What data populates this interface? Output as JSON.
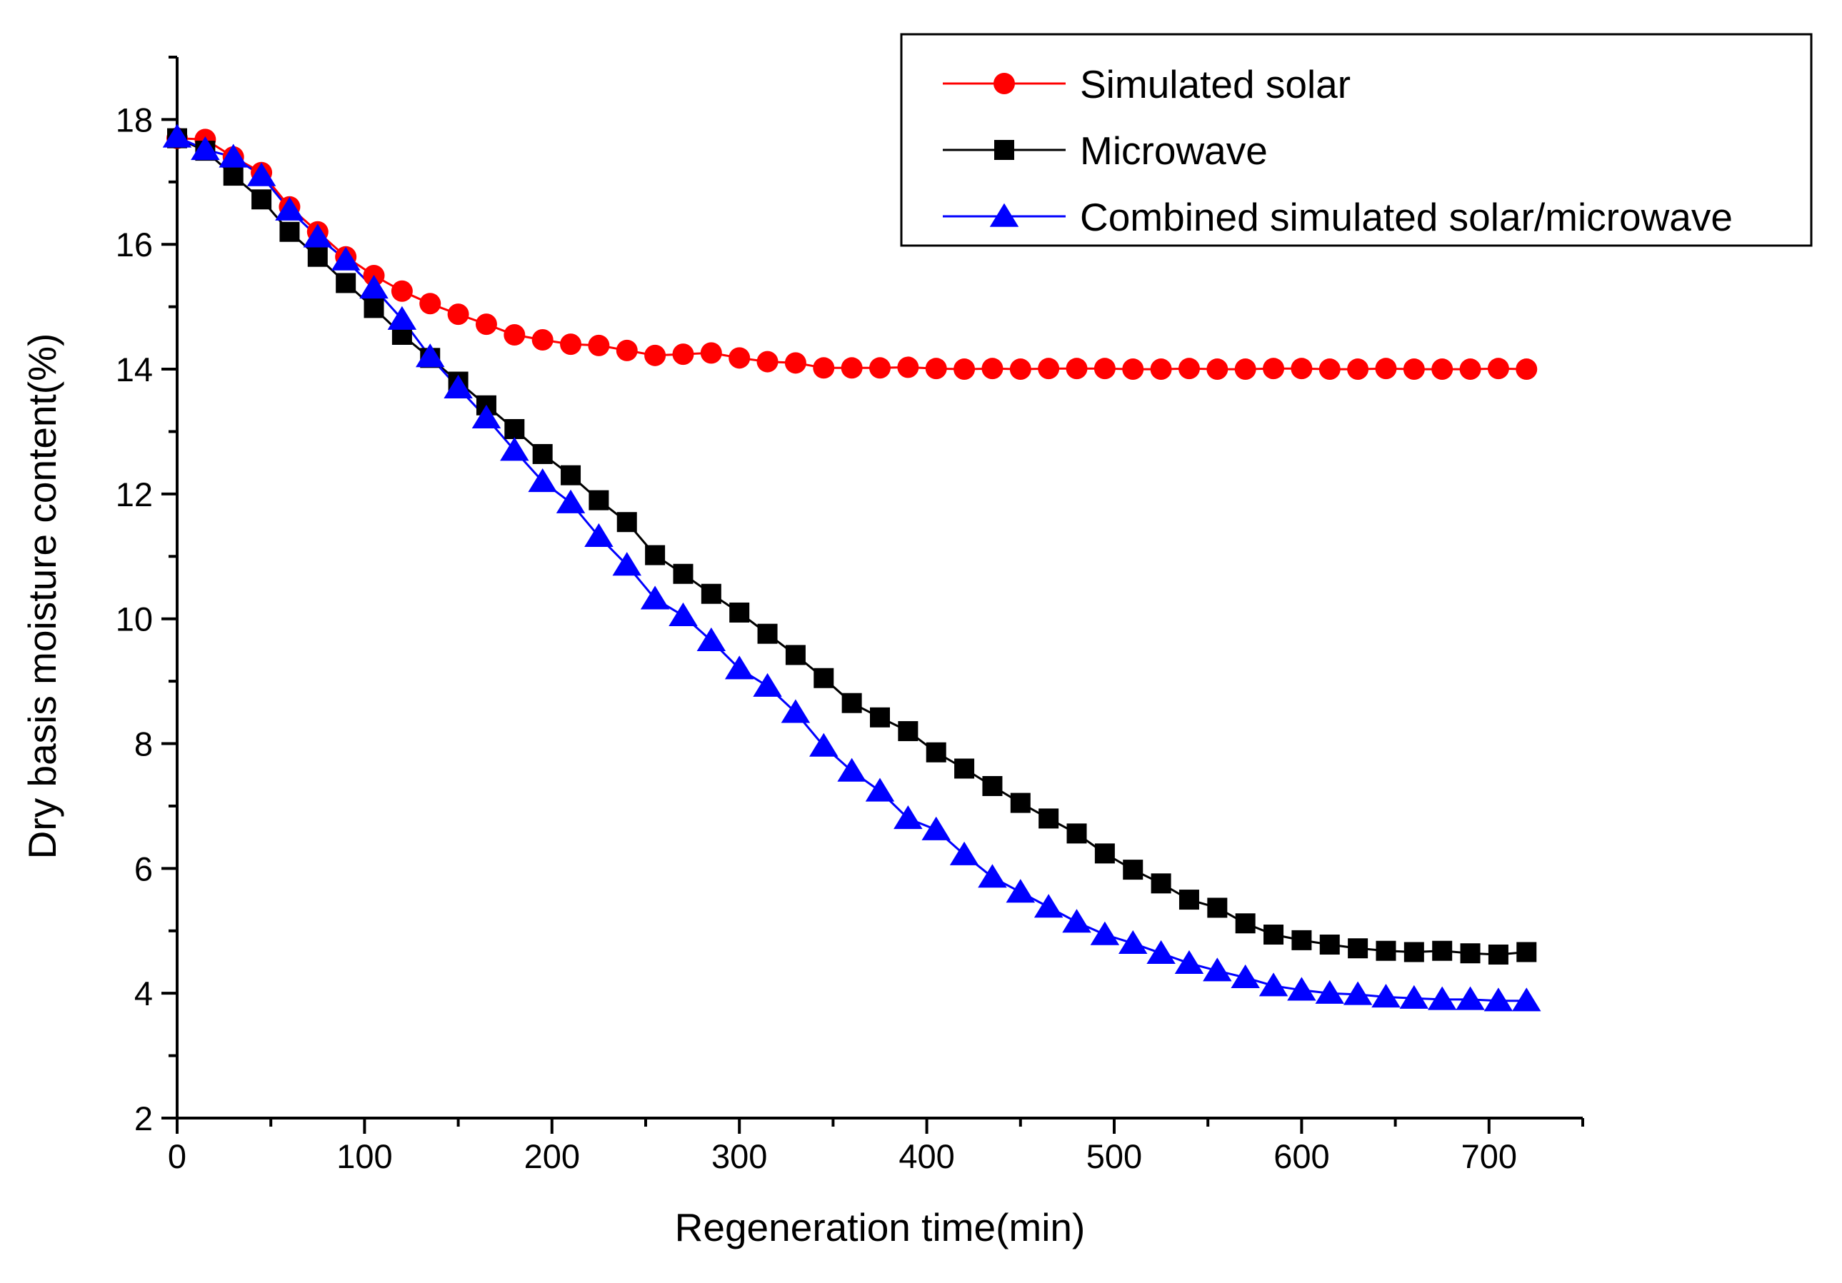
{
  "chart_data": {
    "type": "line",
    "title": "",
    "xlabel": "Regeneration time(min)",
    "ylabel": "Dry basis moisture content(%)",
    "xlim": [
      0,
      750
    ],
    "ylim": [
      2,
      19
    ],
    "xticks": [
      0,
      100,
      200,
      300,
      400,
      500,
      600,
      700
    ],
    "yticks": [
      2,
      4,
      6,
      8,
      10,
      12,
      14,
      16,
      18
    ],
    "x": [
      0,
      15,
      30,
      45,
      60,
      75,
      90,
      105,
      120,
      135,
      150,
      165,
      180,
      195,
      210,
      225,
      240,
      255,
      270,
      285,
      300,
      315,
      330,
      345,
      360,
      375,
      390,
      405,
      420,
      435,
      450,
      465,
      480,
      495,
      510,
      525,
      540,
      555,
      570,
      585,
      600,
      615,
      630,
      645,
      660,
      675,
      690,
      705,
      720
    ],
    "series": [
      {
        "name": "Simulated solar",
        "color": "#ff0000",
        "marker": "circle",
        "values": [
          17.7,
          17.68,
          17.4,
          17.15,
          16.6,
          16.2,
          15.8,
          15.5,
          15.25,
          15.05,
          14.88,
          14.72,
          14.55,
          14.47,
          14.4,
          14.38,
          14.3,
          14.22,
          14.24,
          14.26,
          14.18,
          14.12,
          14.1,
          14.02,
          14.02,
          14.02,
          14.03,
          14.01,
          14.0,
          14.01,
          14.0,
          14.01,
          14.01,
          14.01,
          14.0,
          14.0,
          14.01,
          14.0,
          14.0,
          14.01,
          14.01,
          14.0,
          14.0,
          14.01,
          14.0,
          14.0,
          14.0,
          14.01,
          14.0
        ]
      },
      {
        "name": "Microwave",
        "color": "#000000",
        "marker": "square",
        "values": [
          17.7,
          17.5,
          17.1,
          16.72,
          16.2,
          15.8,
          15.38,
          14.98,
          14.55,
          14.18,
          13.8,
          13.42,
          13.04,
          12.64,
          12.3,
          11.9,
          11.55,
          11.02,
          10.72,
          10.4,
          10.1,
          9.76,
          9.42,
          9.05,
          8.65,
          8.42,
          8.2,
          7.86,
          7.6,
          7.32,
          7.05,
          6.8,
          6.56,
          6.24,
          5.98,
          5.76,
          5.5,
          5.37,
          5.12,
          4.94,
          4.85,
          4.78,
          4.72,
          4.68,
          4.66,
          4.68,
          4.64,
          4.62,
          4.66
        ]
      },
      {
        "name": "Combined simulated solar/microwave",
        "color": "#0000ff",
        "marker": "triangle",
        "values": [
          17.72,
          17.52,
          17.4,
          17.1,
          16.55,
          16.12,
          15.75,
          15.3,
          14.8,
          14.2,
          13.7,
          13.22,
          12.7,
          12.2,
          11.86,
          11.32,
          10.86,
          10.32,
          10.05,
          9.65,
          9.2,
          8.92,
          8.5,
          7.96,
          7.56,
          7.24,
          6.8,
          6.62,
          6.22,
          5.86,
          5.62,
          5.38,
          5.14,
          4.94,
          4.8,
          4.64,
          4.48,
          4.36,
          4.25,
          4.12,
          4.05,
          4.0,
          3.98,
          3.94,
          3.92,
          3.9,
          3.9,
          3.88,
          3.88
        ]
      }
    ],
    "legend_position": "top-right",
    "grid": false
  }
}
